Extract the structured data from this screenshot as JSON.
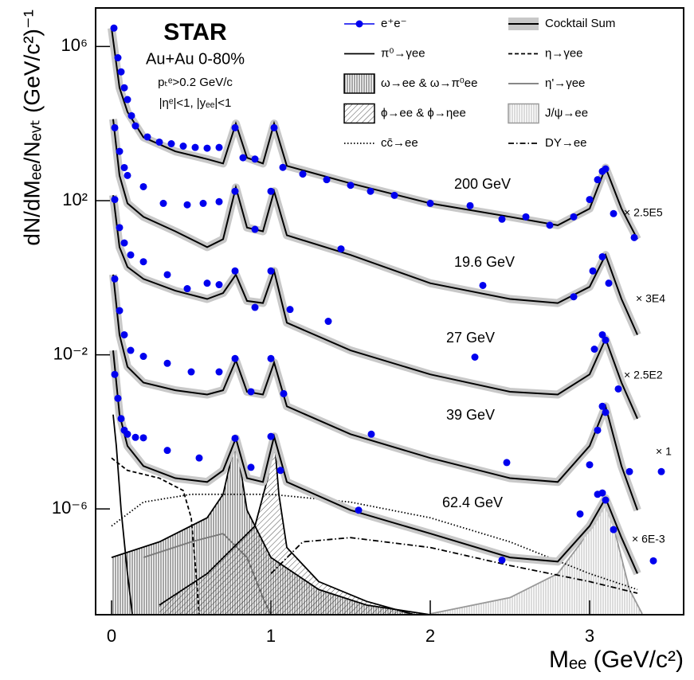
{
  "chart_data": {
    "type": "line",
    "log_y": true,
    "annotations": [
      "STAR",
      "Au+Au 0-80%",
      "pₜᵉ>0.2 GeV/c",
      "|ηᵉ|<1, |yₑₑ|<1"
    ],
    "x_label": "Mₑₑ (GeV/c²)",
    "y_label": "dN/dMₑₑ/Nₑᵥₜ (GeV/c²)⁻¹",
    "xlim": [
      -0.1,
      3.59
    ],
    "ylim": [
      1.8e-09,
      10000000.0
    ],
    "xticks": [
      0,
      1,
      2,
      3
    ],
    "yticks": [
      {
        "value": 1000000,
        "label": "10⁶"
      },
      {
        "value": 100,
        "label": "10²"
      },
      {
        "value": 0.01,
        "label": "10⁻²"
      },
      {
        "value": 1e-06,
        "label": "10⁻⁶"
      }
    ],
    "data_name": "e⁺e⁻",
    "data_color": "#0000ee",
    "cocktail_name": "Cocktail Sum",
    "cocktail_color": "#000000",
    "band_color": "#c8c8c8",
    "datasets": [
      {
        "label": "200 GeV",
        "scale": "× 2.5E5",
        "x": [
          0.015,
          0.04,
          0.06,
          0.08,
          0.1,
          0.125,
          0.15,
          0.225,
          0.3,
          0.375,
          0.45,
          0.525,
          0.6,
          0.675,
          0.775,
          0.825,
          0.9,
          1.02,
          1.075,
          1.2,
          1.35,
          1.5,
          1.625,
          1.775,
          2.0,
          2.25,
          2.45,
          2.6,
          2.75,
          2.9,
          3.0,
          3.05,
          3.08,
          3.1,
          3.15,
          3.28
        ],
        "values": [
          3000000,
          510000,
          220000,
          85000,
          42000,
          16000,
          8700,
          4500,
          3300,
          3000,
          2600,
          2400,
          2300,
          2400,
          7800,
          1300,
          1200,
          7800,
          730,
          490,
          350,
          250,
          175,
          137,
          85,
          74,
          33,
          38,
          23,
          38,
          107,
          350,
          575,
          665,
          46,
          11
        ],
        "cocktail_x": [
          0,
          0.02,
          0.05,
          0.1,
          0.2,
          0.4,
          0.6,
          0.7,
          0.78,
          0.85,
          0.95,
          1.02,
          1.1,
          1.5,
          2.0,
          2.5,
          2.8,
          3.0,
          3.1,
          3.2,
          3.3
        ],
        "cocktail": [
          3000000,
          720000,
          85000,
          20000,
          4400,
          1900,
          1200,
          920,
          10000,
          1300,
          920,
          10000,
          800,
          280,
          85,
          38,
          23,
          62,
          720,
          62,
          10
        ]
      },
      {
        "label": "19.6 GeV",
        "scale": "× 3E4",
        "x": [
          0.02,
          0.05,
          0.08,
          0.1,
          0.2,
          0.325,
          0.475,
          0.575,
          0.675,
          0.775,
          0.9,
          1.0,
          1.44,
          2.33,
          2.9,
          3.02,
          3.08,
          3.12
        ],
        "values": [
          7800,
          1900,
          720,
          450,
          230,
          85,
          78,
          85,
          94,
          175,
          18,
          175,
          5.6,
          0.63,
          0.32,
          1.5,
          3.5,
          0.72
        ],
        "cocktail_x": [
          0.01,
          0.05,
          0.1,
          0.2,
          0.4,
          0.6,
          0.7,
          0.78,
          0.85,
          0.95,
          1.02,
          1.1,
          1.5,
          2.0,
          2.5,
          2.8,
          3.0,
          3.1,
          3.2,
          3.3
        ],
        "cocktail": [
          13000,
          450,
          85,
          38,
          16,
          6.2,
          10,
          220,
          20,
          16,
          175,
          12.6,
          3.9,
          0.72,
          0.28,
          0.22,
          0.58,
          3.9,
          0.28,
          0.033
        ]
      },
      {
        "label": "27 GeV",
        "scale": "× 2.5E2",
        "x": [
          0.02,
          0.05,
          0.08,
          0.12,
          0.2,
          0.35,
          0.475,
          0.6,
          0.675,
          0.775,
          0.9,
          1.0,
          1.12,
          1.36,
          2.28,
          3.03,
          3.08,
          3.1,
          3.18
        ],
        "values": [
          107,
          20,
          8,
          3.9,
          2.6,
          1.2,
          0.52,
          0.72,
          0.66,
          1.5,
          0.17,
          1.5,
          0.15,
          0.074,
          0.0087,
          0.014,
          0.033,
          0.024,
          0.0013
        ],
        "cocktail_x": [
          0.01,
          0.05,
          0.1,
          0.2,
          0.4,
          0.6,
          0.7,
          0.78,
          0.85,
          0.95,
          1.02,
          1.1,
          1.5,
          2.0,
          2.5,
          2.8,
          3.0,
          3.1,
          3.2,
          3.3
        ],
        "cocktail": [
          138,
          6.2,
          1.9,
          0.93,
          0.46,
          0.28,
          0.4,
          1.2,
          0.25,
          0.22,
          1.5,
          0.068,
          0.013,
          0.0031,
          0.0011,
          0.00093,
          0.0031,
          0.026,
          0.0019,
          0.00022
        ]
      },
      {
        "label": "39 GeV",
        "scale": "× 1",
        "x": [
          0.02,
          0.05,
          0.08,
          0.12,
          0.2,
          0.35,
          0.5,
          0.675,
          0.775,
          0.875,
          1.0,
          1.08,
          1.63,
          2.48,
          3.0,
          3.05,
          3.08,
          3.1,
          3.25,
          3.45
        ],
        "values": [
          0.93,
          0.14,
          0.033,
          0.013,
          0.0091,
          0.006,
          0.0036,
          0.0036,
          0.008,
          0.0011,
          0.008,
          0.00098,
          8.7e-05,
          1.6e-05,
          1.4e-05,
          0.00011,
          0.00046,
          0.00032,
          9.3e-06,
          9.3e-06
        ],
        "cocktail_x": [
          0.01,
          0.05,
          0.1,
          0.2,
          0.4,
          0.6,
          0.7,
          0.78,
          0.85,
          0.95,
          1.02,
          1.1,
          1.5,
          2.0,
          2.5,
          2.8,
          3.0,
          3.1,
          3.2,
          3.3
        ],
        "cocktail": [
          1.2,
          0.033,
          0.0049,
          0.0019,
          0.0012,
          0.00093,
          0.0012,
          0.0072,
          0.0011,
          0.00093,
          0.0063,
          0.00046,
          8.7e-05,
          2.1e-05,
          6.3e-06,
          5e-06,
          4.3e-05,
          0.00046,
          1.3e-05,
          9.3e-07
        ]
      },
      {
        "label": "62.4 GeV",
        "scale": "× 6E-3",
        "x": [
          0.02,
          0.04,
          0.06,
          0.08,
          0.1,
          0.15,
          0.2,
          0.35,
          0.55,
          0.775,
          0.875,
          1.0,
          1.06,
          1.55,
          2.45,
          2.94,
          3.05,
          3.08,
          3.1,
          3.15,
          3.4
        ],
        "values": [
          0.0031,
          0.00074,
          0.00022,
          0.00011,
          8.7e-05,
          7.2e-05,
          7e-05,
          3.3e-05,
          2.1e-05,
          6.8e-05,
          1.2e-05,
          7.6e-05,
          1e-05,
          9.3e-07,
          4.7e-08,
          7.4e-07,
          2.4e-06,
          2.6e-06,
          1.7e-06,
          2.9e-07,
          4.5e-08
        ],
        "cocktail_x": [
          0.01,
          0.05,
          0.1,
          0.2,
          0.4,
          0.6,
          0.7,
          0.78,
          0.85,
          0.95,
          1.02,
          1.1,
          1.5,
          2.0,
          2.5,
          2.8,
          3.0,
          3.1,
          3.2,
          3.3
        ],
        "cocktail": [
          0.013,
          0.00028,
          4.3e-05,
          1.3e-05,
          6.3e-06,
          5e-06,
          1e-05,
          6.8e-05,
          6.3e-06,
          5e-06,
          7.6e-05,
          5e-06,
          9.3e-07,
          2.3e-07,
          5.5e-08,
          4.3e-08,
          3.6e-07,
          1.9e-06,
          1.8e-07,
          2.1e-08
        ]
      }
    ],
    "components": [
      {
        "name": "π⁰→γee",
        "color": "#000000",
        "style": "solid",
        "hatch": "none",
        "x": [
          0.01,
          0.03,
          0.06,
          0.1,
          0.13
        ],
        "values": [
          0.00028,
          4.3e-05,
          9.3e-07,
          2.1e-08,
          1.9e-09
        ]
      },
      {
        "name": "η→γee",
        "color": "#000000",
        "style": "dashed",
        "hatch": "none",
        "x": [
          0.0,
          0.1,
          0.3,
          0.45,
          0.5,
          0.53,
          0.55
        ],
        "values": [
          2.1e-05,
          1e-05,
          6.3e-06,
          3e-06,
          5.9e-07,
          2.1e-08,
          1.9e-09
        ]
      },
      {
        "name": "ω→ee & ω→π⁰ee",
        "color": "#000000",
        "style": "solid",
        "hatch": "vertical",
        "x": [
          0,
          0.3,
          0.6,
          0.7,
          0.78,
          0.85,
          1.0,
          1.3,
          1.6,
          2.0
        ],
        "values": [
          5.5e-08,
          1.4e-07,
          5.9e-07,
          2.4e-06,
          6.8e-05,
          9.3e-07,
          5.5e-08,
          8.1e-09,
          3.2e-09,
          1.8e-09
        ]
      },
      {
        "name": "η'→γee",
        "color": "#777777",
        "style": "solid",
        "hatch": "none",
        "x": [
          0.2,
          0.5,
          0.7,
          0.85,
          0.95,
          1.0
        ],
        "values": [
          5.5e-08,
          1.4e-07,
          2.3e-07,
          5.5e-08,
          5e-09,
          1.8e-09
        ]
      },
      {
        "name": "ϕ→ee & ϕ→ηee",
        "color": "#000000",
        "style": "solid",
        "hatch": "diagonal",
        "x": [
          0.3,
          0.6,
          0.9,
          0.98,
          1.02,
          1.05,
          1.1,
          1.3,
          1.6,
          1.9
        ],
        "values": [
          3.2e-09,
          2.1e-08,
          3.6e-07,
          6.3e-06,
          7.6e-05,
          2.4e-06,
          1e-07,
          1.3e-08,
          4e-09,
          1.8e-09
        ]
      },
      {
        "name": "J/ψ→ee",
        "color": "#999999",
        "style": "solid",
        "hatch": "vertical-light",
        "x": [
          2.0,
          2.5,
          2.8,
          2.95,
          3.05,
          3.1,
          3.15,
          3.25,
          3.33
        ],
        "values": [
          1.9e-09,
          5e-09,
          2.1e-08,
          1.4e-07,
          9.3e-07,
          1.7e-06,
          3.6e-07,
          8.1e-09,
          1.9e-09
        ]
      },
      {
        "name": "cc̄→ee",
        "color": "#000000",
        "style": "dotted",
        "hatch": "none",
        "x": [
          0,
          0.2,
          0.5,
          1.0,
          1.5,
          2.0,
          2.5,
          3.0,
          3.3
        ],
        "values": [
          3.6e-07,
          1.5e-06,
          2.4e-06,
          2.4e-06,
          1.5e-06,
          5.9e-07,
          1.4e-07,
          2.1e-08,
          8.1e-09
        ]
      },
      {
        "name": "DY→ee",
        "color": "#000000",
        "style": "dashdot",
        "hatch": "none",
        "x": [
          1.0,
          1.2,
          1.5,
          2.0,
          2.5,
          3.0,
          3.3
        ],
        "values": [
          2.1e-08,
          1.4e-07,
          1.8e-07,
          1e-07,
          3.4e-08,
          1.3e-08,
          6.5e-09
        ]
      }
    ]
  }
}
